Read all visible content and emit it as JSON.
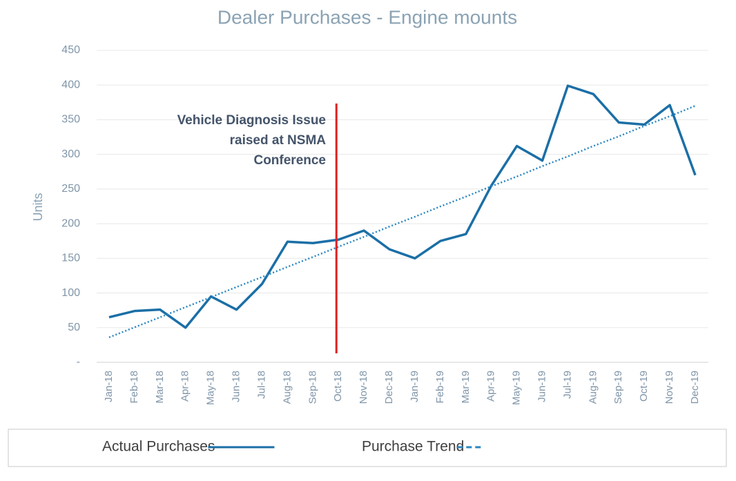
{
  "chart_data": {
    "type": "line",
    "title": "Dealer Purchases - Engine mounts",
    "y_label": "Units",
    "categories": [
      "Jan-18",
      "Feb-18",
      "Mar-18",
      "Apr-18",
      "May-18",
      "Jun-18",
      "Jul-18",
      "Aug-18",
      "Sep-18",
      "Oct-18",
      "Nov-18",
      "Dec-18",
      "Jan-19",
      "Feb-19",
      "Mar-19",
      "Apr-19",
      "May-19",
      "Jun-19",
      "Jul-19",
      "Aug-19",
      "Sep-19",
      "Oct-19",
      "Nov-19",
      "Dec-19"
    ],
    "series": [
      {
        "name": "Actual Purchases",
        "color": "#1b6fa6",
        "style": "solid",
        "values": [
          65,
          74,
          76,
          50,
          95,
          76,
          113,
          174,
          172,
          177,
          190,
          163,
          150,
          175,
          185,
          255,
          312,
          291,
          399,
          387,
          346,
          343,
          371,
          270
        ]
      },
      {
        "name": "Purchase Trend",
        "color": "#2a86c0",
        "style": "dotted",
        "values": [
          36,
          50.5,
          65,
          79.6,
          94,
          108.6,
          123,
          137.7,
          152,
          166.7,
          181,
          195.8,
          210,
          224.9,
          239,
          254,
          268,
          283,
          297,
          312,
          326,
          341,
          355,
          370
        ]
      }
    ],
    "annotation": [
      "Vehicle Diagnosis Issue",
      "raised at NSMA",
      "Conference"
    ],
    "annotation_color": "#e02020",
    "ylim": [
      0,
      450
    ],
    "yticks": [
      {
        "value": 0,
        "label": "-"
      },
      50,
      100,
      150,
      200,
      250,
      300,
      350,
      400,
      450
    ],
    "grid": true,
    "legend": "bottom"
  }
}
